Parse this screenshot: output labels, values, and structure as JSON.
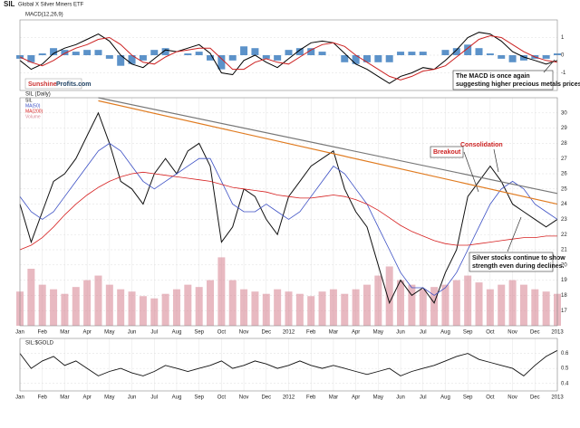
{
  "header": {
    "symbol": "SIL",
    "name": "Global X Silver Miners ETF",
    "logo": [
      "Sunshine",
      "Profits.com"
    ]
  },
  "chart_data": [
    {
      "type": "macd",
      "title": "MACD(12,26,9)",
      "series": [
        {
          "name": "MACD",
          "color": "#000000",
          "values": [
            -0.3,
            -0.8,
            -0.5,
            0.1,
            0.4,
            0.6,
            0.9,
            1.2,
            0.8,
            0.0,
            -0.5,
            -0.7,
            -0.2,
            0.3,
            0.2,
            0.4,
            0.6,
            0.1,
            -1.0,
            -1.1,
            -0.3,
            0.0,
            -0.4,
            -0.7,
            -0.2,
            0.3,
            0.7,
            0.8,
            0.7,
            0.1,
            -0.5,
            -0.8,
            -1.2,
            -1.6,
            -1.2,
            -1.0,
            -0.7,
            -0.8,
            -0.3,
            0.3,
            1.0,
            1.3,
            1.2,
            0.8,
            0.2,
            -0.1,
            -0.3,
            -0.5,
            -0.3
          ]
        },
        {
          "name": "Signal",
          "color": "#cc2222",
          "values": [
            -0.1,
            -0.4,
            -0.6,
            -0.3,
            0.1,
            0.4,
            0.6,
            0.9,
            1.0,
            0.6,
            0.0,
            -0.4,
            -0.5,
            -0.1,
            0.2,
            0.3,
            0.4,
            0.4,
            -0.2,
            -0.8,
            -0.8,
            -0.4,
            -0.2,
            -0.4,
            -0.5,
            -0.1,
            0.3,
            0.6,
            0.7,
            0.5,
            0.0,
            -0.4,
            -0.8,
            -1.2,
            -1.4,
            -1.2,
            -0.9,
            -0.8,
            -0.6,
            -0.1,
            0.4,
            0.9,
            1.1,
            1.0,
            0.6,
            0.2,
            -0.1,
            -0.3,
            -0.4
          ]
        },
        {
          "name": "Histogram",
          "color": "#3f7fbf",
          "values": [
            -0.2,
            -0.4,
            0.1,
            0.4,
            0.3,
            0.2,
            0.3,
            0.3,
            -0.2,
            -0.6,
            -0.5,
            -0.3,
            0.3,
            0.4,
            0.0,
            0.1,
            0.2,
            -0.3,
            -0.8,
            -0.3,
            0.5,
            0.4,
            -0.2,
            -0.3,
            0.3,
            0.4,
            0.4,
            0.2,
            0.0,
            -0.4,
            -0.5,
            -0.4,
            -0.4,
            -0.4,
            0.2,
            0.2,
            0.2,
            0.0,
            0.3,
            0.4,
            0.6,
            0.4,
            0.1,
            -0.2,
            -0.4,
            -0.3,
            -0.2,
            -0.2,
            0.1
          ]
        }
      ],
      "ylim": [
        -2,
        2
      ],
      "yticks": [
        -1,
        0,
        1
      ],
      "annotation": "The MACD is once again suggesting higher precious metals prices."
    },
    {
      "type": "price",
      "title": "SIL (Daily)",
      "categories": [
        "Jan",
        null,
        "Feb",
        null,
        "Mar",
        null,
        "Apr",
        null,
        "May",
        null,
        "Jun",
        null,
        "Jul",
        null,
        "Aug",
        null,
        "Sep",
        null,
        "Oct",
        null,
        "Nov",
        null,
        "Dec",
        null,
        "2012",
        null,
        "Feb",
        null,
        "Mar",
        null,
        "Apr",
        null,
        "May",
        null,
        "Jun",
        null,
        "Jul",
        null,
        "Aug",
        null,
        "Sep",
        null,
        "Oct",
        null,
        "Nov",
        null,
        "Dec",
        null,
        "2013"
      ],
      "series": [
        {
          "name": "SIL",
          "color": "#111111",
          "values": [
            24.0,
            21.5,
            23.5,
            25.5,
            26.0,
            27.0,
            28.5,
            30.0,
            28.0,
            25.5,
            25.0,
            24.0,
            26.0,
            27.0,
            26.0,
            27.5,
            28.0,
            26.5,
            21.5,
            22.5,
            25.0,
            24.5,
            23.0,
            22.0,
            24.5,
            25.5,
            26.5,
            27.0,
            27.5,
            25.0,
            23.5,
            22.5,
            20.0,
            17.5,
            19.0,
            18.0,
            18.5,
            17.5,
            19.5,
            21.0,
            24.5,
            25.5,
            26.5,
            25.5,
            24.0,
            23.5,
            23.0,
            22.5,
            23.0
          ]
        },
        {
          "name": "MA(50)",
          "color": "#3b4fc4",
          "values": [
            24.5,
            23.5,
            23.0,
            23.5,
            24.5,
            25.5,
            26.5,
            27.5,
            28.0,
            27.5,
            26.5,
            25.5,
            25.0,
            25.5,
            26.0,
            26.5,
            27.0,
            27.0,
            25.5,
            24.0,
            23.5,
            23.5,
            24.0,
            23.5,
            23.0,
            23.5,
            24.5,
            25.5,
            26.5,
            26.0,
            25.0,
            24.0,
            22.5,
            21.0,
            19.5,
            18.5,
            18.5,
            18.0,
            18.5,
            19.5,
            21.0,
            22.5,
            24.0,
            25.0,
            25.5,
            25.0,
            24.0,
            23.5,
            23.0
          ]
        },
        {
          "name": "MA(200)",
          "color": "#d62020",
          "values": [
            21.0,
            21.3,
            21.8,
            22.5,
            23.3,
            24.0,
            24.6,
            25.1,
            25.5,
            25.8,
            26.0,
            26.1,
            26.0,
            25.9,
            25.8,
            25.7,
            25.6,
            25.5,
            25.3,
            25.1,
            25.0,
            24.9,
            24.8,
            24.6,
            24.5,
            24.4,
            24.4,
            24.5,
            24.6,
            24.5,
            24.3,
            24.0,
            23.6,
            23.1,
            22.6,
            22.2,
            21.9,
            21.6,
            21.4,
            21.3,
            21.3,
            21.4,
            21.5,
            21.6,
            21.7,
            21.8,
            21.8,
            21.9,
            21.9
          ]
        },
        {
          "name": "Volume",
          "color": "#d98a98",
          "axis": "y2",
          "values": [
            1.5,
            2.5,
            1.8,
            1.6,
            1.4,
            1.7,
            2.0,
            2.2,
            1.8,
            1.6,
            1.5,
            1.3,
            1.2,
            1.4,
            1.6,
            1.8,
            1.7,
            2.0,
            3.0,
            2.0,
            1.6,
            1.5,
            1.4,
            1.6,
            1.5,
            1.4,
            1.3,
            1.5,
            1.6,
            1.4,
            1.6,
            1.8,
            2.2,
            2.6,
            2.0,
            1.8,
            1.6,
            1.7,
            1.8,
            2.0,
            2.2,
            1.9,
            1.6,
            1.8,
            2.0,
            1.8,
            1.6,
            1.5,
            1.4
          ]
        }
      ],
      "trendlines": [
        {
          "color": "#e07b20",
          "x": [
            7,
            48
          ],
          "values": [
            30.8,
            24.0
          ]
        },
        {
          "color": "#777777",
          "x": [
            7,
            48
          ],
          "values": [
            31.0,
            24.7
          ]
        }
      ],
      "ylim": [
        16,
        31
      ],
      "yticks": [
        17,
        18,
        19,
        20,
        21,
        22,
        23,
        24,
        25,
        26,
        27,
        28,
        29,
        30
      ],
      "y2lim": [
        0,
        10
      ],
      "grid": true,
      "annotations": [
        "Consolidation",
        "Breakout",
        "Silver stocks continue to show strength even during declines."
      ]
    },
    {
      "type": "line",
      "categories": [
        "Jan",
        null,
        "Feb",
        null,
        "Mar",
        null,
        "Apr",
        null,
        "May",
        null,
        "Jun",
        null,
        "Jul",
        null,
        "Aug",
        null,
        "Sep",
        null,
        "Oct",
        null,
        "Nov",
        null,
        "Dec",
        null,
        "2012",
        null,
        "Feb",
        null,
        "Mar",
        null,
        "Apr",
        null,
        "May",
        null,
        "Jun",
        null,
        "Jul",
        null,
        "Aug",
        null,
        "Sep",
        null,
        "Oct",
        null,
        "Nov",
        null,
        "Dec",
        null,
        "2013"
      ],
      "series": [
        {
          "name": "SIL:$GOLD",
          "color": "#111111",
          "values": [
            0.6,
            0.5,
            0.55,
            0.58,
            0.52,
            0.55,
            0.5,
            0.45,
            0.48,
            0.5,
            0.47,
            0.45,
            0.48,
            0.52,
            0.5,
            0.48,
            0.5,
            0.52,
            0.55,
            0.5,
            0.52,
            0.55,
            0.53,
            0.5,
            0.52,
            0.55,
            0.52,
            0.5,
            0.52,
            0.5,
            0.48,
            0.46,
            0.48,
            0.5,
            0.45,
            0.48,
            0.5,
            0.52,
            0.55,
            0.58,
            0.6,
            0.56,
            0.54,
            0.52,
            0.5,
            0.45,
            0.52,
            0.58,
            0.62
          ]
        }
      ],
      "ylim": [
        0.35,
        0.7
      ],
      "yticks": [
        0.4,
        0.5,
        0.6
      ],
      "grid": true
    }
  ]
}
